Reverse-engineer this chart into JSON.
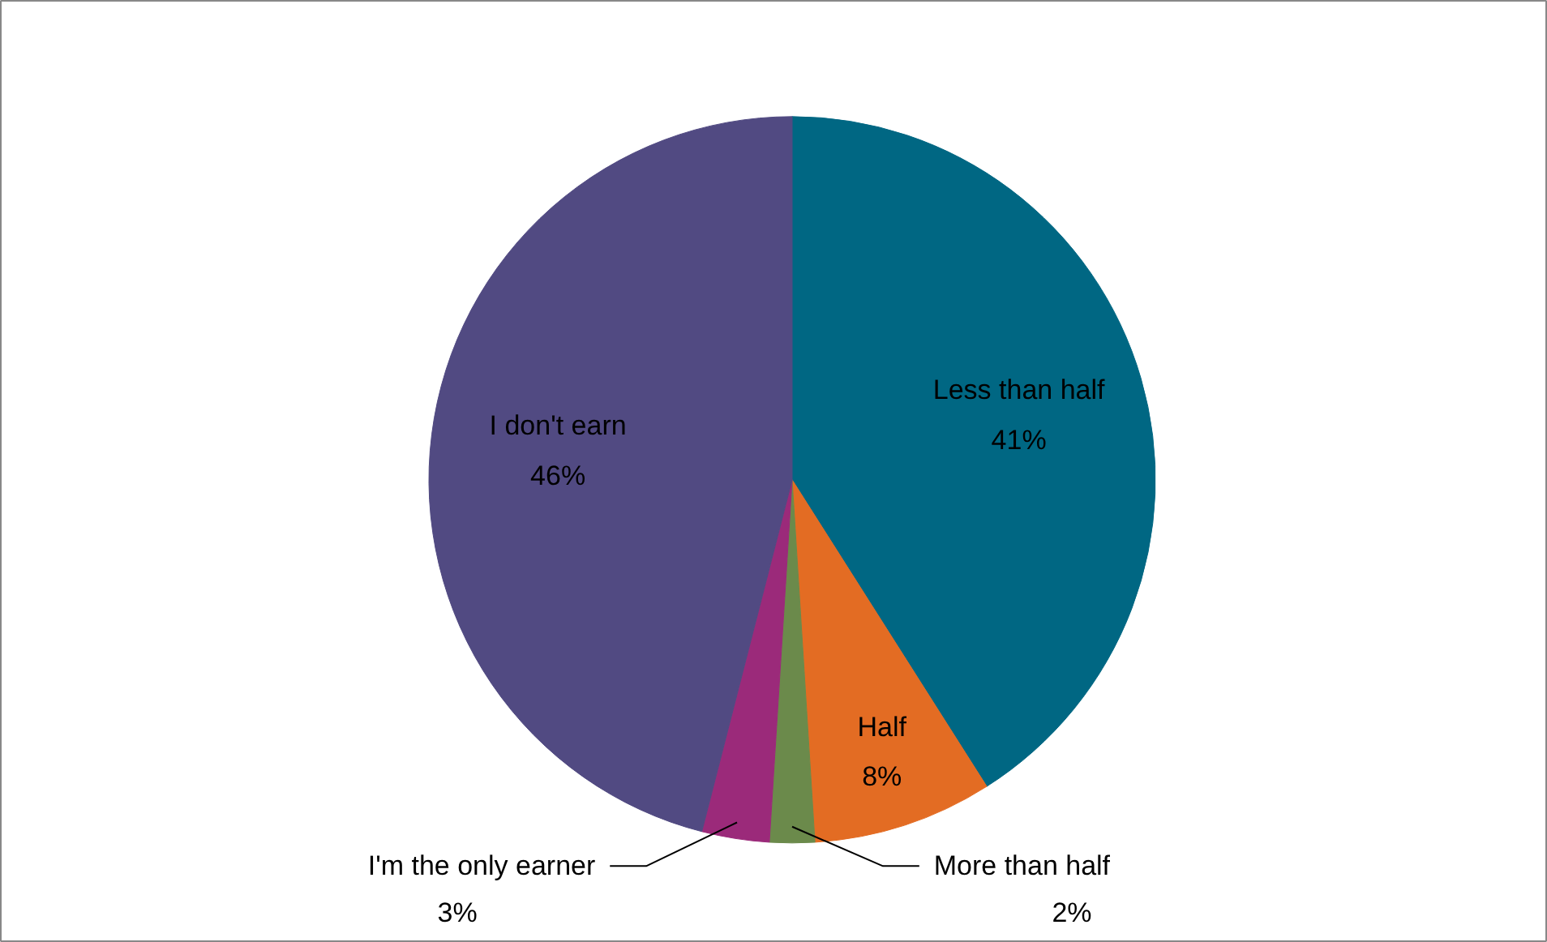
{
  "chart_data": {
    "type": "pie",
    "categories": [
      "Less than half",
      "Half",
      "More than half",
      "I'm the only earner",
      "I don't earn"
    ],
    "values": [
      41,
      8,
      2,
      3,
      46
    ],
    "value_labels": [
      "41%",
      "8%",
      "2%",
      "3%",
      "46%"
    ],
    "colors": [
      "#006783",
      "#e36c23",
      "#6b8a4b",
      "#9b2a7a",
      "#514a82"
    ],
    "data_labels": true
  }
}
